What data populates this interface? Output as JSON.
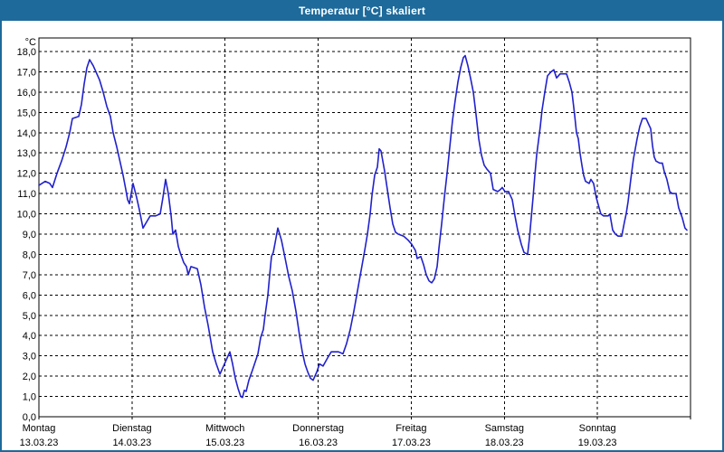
{
  "window": {
    "title": "Temperatur [°C] skaliert",
    "titlebar_color": "#1d6a9b",
    "border_color": "#1d6a9b",
    "background_color": "#ffffff"
  },
  "chart_data": {
    "type": "line",
    "title": "Temperatur [°C] skaliert",
    "xlabel": "",
    "ylabel": "",
    "y_unit_label": "°C",
    "ylim": [
      0,
      18
    ],
    "y_tick_step": 1,
    "y_tick_labels": [
      "0,0",
      "1,0",
      "2,0",
      "3,0",
      "4,0",
      "5,0",
      "6,0",
      "7,0",
      "8,0",
      "9,0",
      "10,0",
      "11,0",
      "12,0",
      "13,0",
      "14,0",
      "15,0",
      "16,0",
      "17,0",
      "18,0"
    ],
    "xlim_days": [
      0,
      7
    ],
    "x_days": [
      {
        "name": "Montag",
        "date": "13.03.23"
      },
      {
        "name": "Dienstag",
        "date": "14.03.23"
      },
      {
        "name": "Mittwoch",
        "date": "15.03.23"
      },
      {
        "name": "Donnerstag",
        "date": "16.03.23"
      },
      {
        "name": "Freitag",
        "date": "17.03.23"
      },
      {
        "name": "Samstag",
        "date": "18.03.23"
      },
      {
        "name": "Sonntag",
        "date": "19.03.23"
      }
    ],
    "grid": true,
    "grid_style": "dashed",
    "grid_color": "#000000",
    "line_color": "#2121cc",
    "legend": "none",
    "series": [
      {
        "name": "Temperatur",
        "points": [
          [
            0.0,
            11.4
          ],
          [
            0.068,
            11.6
          ],
          [
            0.117,
            11.5
          ],
          [
            0.146,
            11.3
          ],
          [
            0.194,
            12.0
          ],
          [
            0.243,
            12.6
          ],
          [
            0.292,
            13.3
          ],
          [
            0.331,
            14.0
          ],
          [
            0.36,
            14.7
          ],
          [
            0.428,
            14.8
          ],
          [
            0.457,
            15.4
          ],
          [
            0.486,
            16.4
          ],
          [
            0.515,
            17.2
          ],
          [
            0.544,
            17.6
          ],
          [
            0.583,
            17.3
          ],
          [
            0.622,
            16.9
          ],
          [
            0.651,
            16.6
          ],
          [
            0.69,
            16.0
          ],
          [
            0.729,
            15.3
          ],
          [
            0.768,
            14.8
          ],
          [
            0.797,
            14.0
          ],
          [
            0.836,
            13.3
          ],
          [
            0.875,
            12.5
          ],
          [
            0.904,
            11.9
          ],
          [
            0.933,
            11.2
          ],
          [
            0.953,
            10.7
          ],
          [
            0.972,
            10.5
          ],
          [
            1.011,
            11.5
          ],
          [
            1.05,
            10.8
          ],
          [
            1.079,
            10.2
          ],
          [
            1.118,
            9.3
          ],
          [
            1.157,
            9.6
          ],
          [
            1.196,
            9.9
          ],
          [
            1.254,
            9.9
          ],
          [
            1.303,
            10.0
          ],
          [
            1.332,
            10.8
          ],
          [
            1.361,
            11.7
          ],
          [
            1.39,
            11.0
          ],
          [
            1.42,
            9.9
          ],
          [
            1.439,
            9.0
          ],
          [
            1.468,
            9.2
          ],
          [
            1.497,
            8.4
          ],
          [
            1.517,
            8.1
          ],
          [
            1.556,
            7.6
          ],
          [
            1.585,
            7.4
          ],
          [
            1.604,
            7.0
          ],
          [
            1.633,
            7.4
          ],
          [
            1.701,
            7.3
          ],
          [
            1.74,
            6.5
          ],
          [
            1.779,
            5.4
          ],
          [
            1.818,
            4.5
          ],
          [
            1.867,
            3.2
          ],
          [
            1.906,
            2.6
          ],
          [
            1.944,
            2.1
          ],
          [
            1.983,
            2.5
          ],
          [
            2.022,
            2.9
          ],
          [
            2.051,
            3.2
          ],
          [
            2.081,
            2.6
          ],
          [
            2.11,
            1.9
          ],
          [
            2.139,
            1.4
          ],
          [
            2.168,
            1.0
          ],
          [
            2.187,
            0.95
          ],
          [
            2.207,
            1.3
          ],
          [
            2.226,
            1.25
          ],
          [
            2.256,
            1.8
          ],
          [
            2.294,
            2.3
          ],
          [
            2.324,
            2.7
          ],
          [
            2.353,
            3.1
          ],
          [
            2.382,
            3.9
          ],
          [
            2.411,
            4.3
          ],
          [
            2.43,
            5.0
          ],
          [
            2.46,
            6.0
          ],
          [
            2.479,
            7.0
          ],
          [
            2.499,
            7.9
          ],
          [
            2.518,
            8.1
          ],
          [
            2.538,
            8.6
          ],
          [
            2.567,
            9.3
          ],
          [
            2.606,
            8.7
          ],
          [
            2.645,
            7.8
          ],
          [
            2.684,
            6.9
          ],
          [
            2.722,
            6.2
          ],
          [
            2.761,
            5.2
          ],
          [
            2.8,
            4.0
          ],
          [
            2.829,
            3.2
          ],
          [
            2.858,
            2.6
          ],
          [
            2.888,
            2.2
          ],
          [
            2.917,
            1.9
          ],
          [
            2.946,
            1.8
          ],
          [
            2.985,
            2.2
          ],
          [
            3.014,
            2.6
          ],
          [
            3.053,
            2.5
          ],
          [
            3.101,
            2.9
          ],
          [
            3.14,
            3.2
          ],
          [
            3.218,
            3.2
          ],
          [
            3.267,
            3.1
          ],
          [
            3.305,
            3.6
          ],
          [
            3.344,
            4.3
          ],
          [
            3.383,
            5.2
          ],
          [
            3.422,
            6.2
          ],
          [
            3.461,
            7.2
          ],
          [
            3.5,
            8.2
          ],
          [
            3.529,
            9.0
          ],
          [
            3.558,
            10.0
          ],
          [
            3.578,
            10.9
          ],
          [
            3.607,
            11.9
          ],
          [
            3.636,
            12.3
          ],
          [
            3.656,
            13.2
          ],
          [
            3.675,
            13.1
          ],
          [
            3.714,
            12.1
          ],
          [
            3.743,
            11.2
          ],
          [
            3.772,
            10.3
          ],
          [
            3.801,
            9.5
          ],
          [
            3.831,
            9.1
          ],
          [
            3.86,
            9.0
          ],
          [
            3.918,
            8.9
          ],
          [
            3.967,
            8.7
          ],
          [
            4.005,
            8.5
          ],
          [
            4.044,
            8.2
          ],
          [
            4.064,
            7.8
          ],
          [
            4.103,
            7.9
          ],
          [
            4.132,
            7.5
          ],
          [
            4.161,
            7.0
          ],
          [
            4.19,
            6.7
          ],
          [
            4.219,
            6.6
          ],
          [
            4.249,
            6.8
          ],
          [
            4.278,
            7.4
          ],
          [
            4.297,
            8.3
          ],
          [
            4.326,
            9.5
          ],
          [
            4.356,
            10.8
          ],
          [
            4.385,
            12.0
          ],
          [
            4.414,
            13.3
          ],
          [
            4.443,
            14.6
          ],
          [
            4.472,
            15.6
          ],
          [
            4.501,
            16.5
          ],
          [
            4.531,
            17.2
          ],
          [
            4.56,
            17.7
          ],
          [
            4.579,
            17.8
          ],
          [
            4.608,
            17.3
          ],
          [
            4.637,
            16.7
          ],
          [
            4.667,
            16.0
          ],
          [
            4.696,
            14.9
          ],
          [
            4.725,
            13.7
          ],
          [
            4.754,
            12.9
          ],
          [
            4.783,
            12.4
          ],
          [
            4.813,
            12.2
          ],
          [
            4.851,
            12.0
          ],
          [
            4.881,
            11.2
          ],
          [
            4.929,
            11.1
          ],
          [
            4.958,
            11.2
          ],
          [
            4.978,
            11.3
          ],
          [
            5.007,
            11.1
          ],
          [
            5.046,
            11.1
          ],
          [
            5.085,
            10.7
          ],
          [
            5.114,
            9.9
          ],
          [
            5.143,
            9.2
          ],
          [
            5.182,
            8.5
          ],
          [
            5.211,
            8.1
          ],
          [
            5.25,
            8.0
          ],
          [
            5.269,
            8.8
          ],
          [
            5.289,
            9.8
          ],
          [
            5.308,
            10.8
          ],
          [
            5.328,
            11.9
          ],
          [
            5.347,
            12.9
          ],
          [
            5.367,
            13.6
          ],
          [
            5.386,
            14.3
          ],
          [
            5.405,
            15.1
          ],
          [
            5.435,
            16.0
          ],
          [
            5.464,
            16.8
          ],
          [
            5.503,
            17.0
          ],
          [
            5.532,
            17.1
          ],
          [
            5.561,
            16.7
          ],
          [
            5.6,
            16.9
          ],
          [
            5.629,
            16.9
          ],
          [
            5.668,
            16.9
          ],
          [
            5.697,
            16.5
          ],
          [
            5.726,
            16.0
          ],
          [
            5.755,
            14.9
          ],
          [
            5.775,
            14.0
          ],
          [
            5.794,
            13.7
          ],
          [
            5.813,
            13.0
          ],
          [
            5.833,
            12.4
          ],
          [
            5.852,
            11.9
          ],
          [
            5.872,
            11.6
          ],
          [
            5.911,
            11.5
          ],
          [
            5.93,
            11.7
          ],
          [
            5.959,
            11.5
          ],
          [
            5.988,
            10.8
          ],
          [
            6.018,
            10.3
          ],
          [
            6.037,
            10.0
          ],
          [
            6.066,
            9.9
          ],
          [
            6.115,
            9.9
          ],
          [
            6.134,
            10.0
          ],
          [
            6.164,
            9.2
          ],
          [
            6.193,
            9.0
          ],
          [
            6.222,
            8.9
          ],
          [
            6.261,
            8.9
          ],
          [
            6.29,
            9.6
          ],
          [
            6.309,
            10.0
          ],
          [
            6.329,
            10.6
          ],
          [
            6.358,
            11.7
          ],
          [
            6.387,
            12.7
          ],
          [
            6.426,
            13.7
          ],
          [
            6.455,
            14.3
          ],
          [
            6.484,
            14.7
          ],
          [
            6.523,
            14.7
          ],
          [
            6.552,
            14.4
          ],
          [
            6.572,
            14.2
          ],
          [
            6.591,
            13.4
          ],
          [
            6.61,
            12.8
          ],
          [
            6.63,
            12.6
          ],
          [
            6.669,
            12.5
          ],
          [
            6.698,
            12.5
          ],
          [
            6.717,
            12.1
          ],
          [
            6.746,
            11.7
          ],
          [
            6.776,
            11.1
          ],
          [
            6.805,
            11.0
          ],
          [
            6.844,
            11.0
          ],
          [
            6.873,
            10.3
          ],
          [
            6.912,
            9.8
          ],
          [
            6.941,
            9.3
          ],
          [
            6.961,
            9.2
          ]
        ]
      }
    ]
  }
}
